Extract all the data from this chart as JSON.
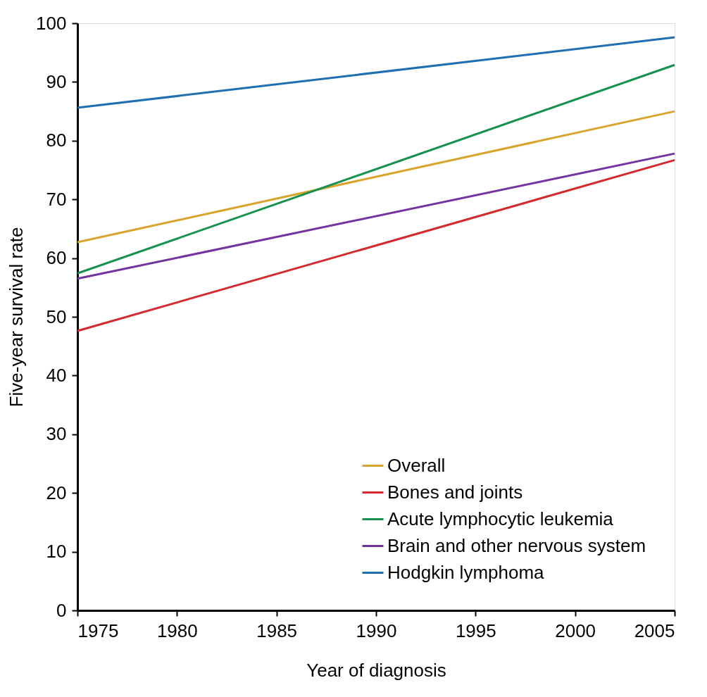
{
  "chart_data": {
    "type": "line",
    "xlabel": "Year of diagnosis",
    "ylabel": "Five-year survival rate",
    "x": [
      1975,
      2005
    ],
    "xlim": [
      1975,
      2005
    ],
    "xticks": [
      1975,
      1980,
      1985,
      1990,
      1995,
      2000,
      2005
    ],
    "ylim": [
      0,
      100
    ],
    "yticks": [
      0,
      10,
      20,
      30,
      40,
      50,
      60,
      70,
      80,
      90,
      100
    ],
    "grid": false,
    "legend": "bottom right",
    "marker": "none",
    "line_style": "solid",
    "series": [
      {
        "name": "Overall",
        "color": "#d9a42c",
        "values": [
          62.7,
          85.0
        ]
      },
      {
        "name": "Bones and joints",
        "color": "#d42a2e",
        "values": [
          47.6,
          76.7
        ]
      },
      {
        "name": "Acute lymphocytic leukemia",
        "color": "#17914f",
        "values": [
          57.4,
          92.9
        ]
      },
      {
        "name": "Brain and other nervous system",
        "color": "#7433a0",
        "values": [
          56.5,
          77.8
        ]
      },
      {
        "name": "Hodgkin lymphoma",
        "color": "#1f6fb3",
        "values": [
          85.6,
          97.6
        ]
      }
    ]
  }
}
